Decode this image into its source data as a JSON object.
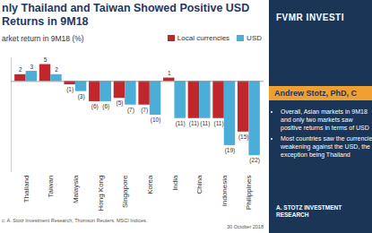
{
  "chart_data": {
    "type": "bar",
    "title": "nly Thailand and Taiwan Showed Positive USD Returns in 9M18",
    "subtitle": "arket return in 9M18 (%)",
    "source": "c: A. Stotz Investment Research, Thomson Reuters. MSCI Indices.",
    "date": "30 October 2018",
    "categories": [
      "Thailand",
      "Taiwan",
      "Malaysia",
      "Hong Kong",
      "Singapore",
      "Korea",
      "India",
      "China",
      "Indonesia",
      "Philippines"
    ],
    "series": [
      {
        "name": "Local currencies",
        "color": "#c0262c",
        "values": [
          2,
          5,
          -1,
          -6,
          -5,
          -7,
          1,
          -11,
          -11,
          -15
        ],
        "value_labels": [
          "2",
          "5",
          "(1)",
          "(6)",
          "(5)",
          "(7)",
          "1",
          "(11)",
          "(11)",
          "(15)"
        ]
      },
      {
        "name": "USD",
        "color": "#4aaed9",
        "values": [
          3,
          2,
          -3,
          -6,
          -7,
          -10,
          -11,
          -11,
          -19,
          -22
        ],
        "value_labels": [
          "3",
          "2",
          "(3)",
          "(6)",
          "(7)",
          "(10)",
          "(11)",
          "(11)",
          "(19)",
          "(22)"
        ]
      }
    ],
    "ylim": [
      -27,
      7
    ],
    "yticks": [],
    "grid": false,
    "legend": "top-right",
    "data_labels": true,
    "tick_labels": "x"
  },
  "sidebar": {
    "brand": "FVMR INVESTI",
    "author": "Andrew Stotz, PhD, C",
    "bullets": [
      "Overall, Asian markets in 9M18 and only two markets saw positive returns in terms of USD",
      "Most countries saw the currencies weakening against the USD, the exception being Thailand"
    ],
    "firm": "A. STOTZ INVESTMENT RESEARCH"
  }
}
